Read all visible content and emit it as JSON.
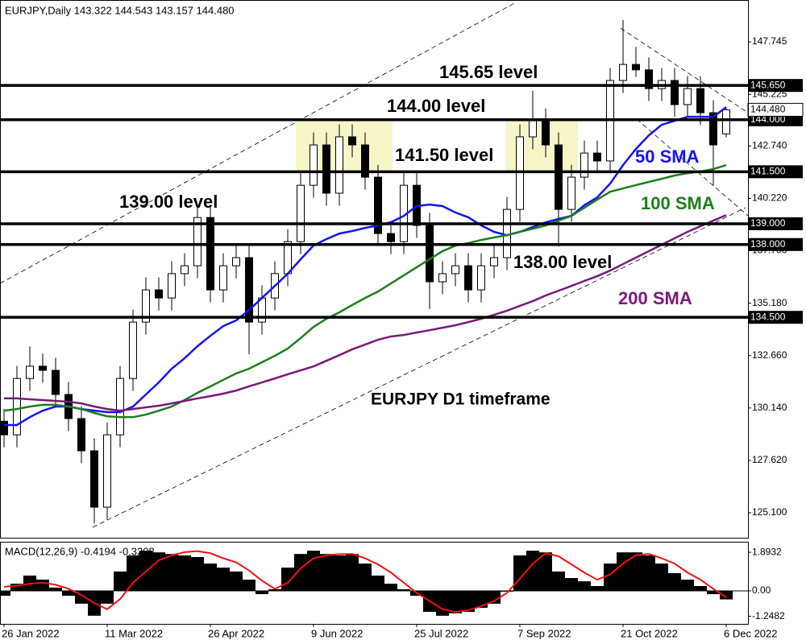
{
  "chart_data": [
    {
      "type": "candlestick",
      "title": "EURJPY,Daily  143.322 144.543 143.157 144.480",
      "subtitle": "EURJPY D1 timeframe",
      "categories": [
        "26 Jan 2022",
        null,
        null,
        null,
        null,
        null,
        null,
        null,
        "11 Mar 2022",
        null,
        null,
        null,
        null,
        null,
        null,
        null,
        "26 Apr 2022",
        null,
        null,
        null,
        null,
        null,
        null,
        null,
        "9 Jun 2022",
        null,
        null,
        null,
        null,
        null,
        null,
        null,
        "25 Jul 2022",
        null,
        null,
        null,
        null,
        null,
        null,
        null,
        "7 Sep 2022",
        null,
        null,
        null,
        null,
        null,
        null,
        null,
        "21 Oct 2022",
        null,
        null,
        null,
        null,
        null,
        null,
        null,
        "6 Dec 2022"
      ],
      "open": [
        129.5,
        128.85,
        131.56,
        132.15,
        131.95,
        130.79,
        129.63,
        128.08,
        125.37,
        128.85,
        131.56,
        134.27,
        135.82,
        135.43,
        136.6,
        136.98,
        139.3,
        135.82,
        136.98,
        137.37,
        134.27,
        135.43,
        136.6,
        138.14,
        140.85,
        142.79,
        140.47,
        143.18,
        142.79,
        141.24,
        138.53,
        138.14,
        140.85,
        138.92,
        136.21,
        136.6,
        136.98,
        135.82,
        136.98,
        137.37,
        139.69,
        143.18,
        143.95,
        142.79,
        139.69,
        141.24,
        142.4,
        142.02,
        145.89,
        146.66,
        146.4,
        145.5,
        145.89,
        144.73,
        145.5,
        144.34,
        143.322
      ],
      "high": [
        130.1,
        132.16,
        133.1,
        132.75,
        132.55,
        131.39,
        130.23,
        128.68,
        129.45,
        132.16,
        134.87,
        136.42,
        136.42,
        137.2,
        137.58,
        139.9,
        139.9,
        137.58,
        137.97,
        137.97,
        136.03,
        137.2,
        138.74,
        141.45,
        143.39,
        143.39,
        143.78,
        143.78,
        143.39,
        141.84,
        139.13,
        141.45,
        141.45,
        139.52,
        137.2,
        137.58,
        137.58,
        137.58,
        137.97,
        140.29,
        143.78,
        145.4,
        144.55,
        143.39,
        141.84,
        143.0,
        143.0,
        146.49,
        148.8,
        147.5,
        147.0,
        146.49,
        146.49,
        146.1,
        146.1,
        144.94,
        144.543
      ],
      "low": [
        128.25,
        128.25,
        130.96,
        131.35,
        130.19,
        129.03,
        127.48,
        124.6,
        124.77,
        128.25,
        130.96,
        133.67,
        134.83,
        134.83,
        136.0,
        136.38,
        135.22,
        135.22,
        136.38,
        132.72,
        133.67,
        134.83,
        136.0,
        137.54,
        140.25,
        139.87,
        139.87,
        142.19,
        140.64,
        137.93,
        137.54,
        137.54,
        138.32,
        134.9,
        135.61,
        136.0,
        135.22,
        135.22,
        136.38,
        136.77,
        139.09,
        142.58,
        142.19,
        137.9,
        139.09,
        140.64,
        141.42,
        141.42,
        145.29,
        146.06,
        144.9,
        144.9,
        144.13,
        144.13,
        143.74,
        140.85,
        143.157
      ],
      "close": [
        128.85,
        131.56,
        132.15,
        131.95,
        130.79,
        129.63,
        128.08,
        125.37,
        128.85,
        131.56,
        134.27,
        135.82,
        135.43,
        136.6,
        136.98,
        139.3,
        135.82,
        136.98,
        137.37,
        134.27,
        135.43,
        136.6,
        138.14,
        140.85,
        142.79,
        140.47,
        143.18,
        142.79,
        141.24,
        138.53,
        138.14,
        140.85,
        138.92,
        136.21,
        136.6,
        136.98,
        135.82,
        136.98,
        137.37,
        139.69,
        143.18,
        143.95,
        142.79,
        139.69,
        141.24,
        142.4,
        142.02,
        145.89,
        146.66,
        146.4,
        145.5,
        145.89,
        144.73,
        145.5,
        144.34,
        142.79,
        144.48
      ],
      "bull_color": "#ffffff",
      "bear_color": "#000000",
      "series": [
        {
          "name": "50 SMA",
          "color": "#1414f0",
          "values": [
            129.32,
            129.32,
            129.7,
            130.01,
            130.21,
            130.21,
            130.09,
            130.01,
            129.94,
            129.94,
            130.21,
            130.79,
            131.37,
            132.03,
            132.53,
            133.11,
            133.61,
            134.08,
            134.35,
            134.85,
            135.43,
            136.01,
            136.6,
            137.29,
            137.95,
            138.26,
            138.53,
            138.65,
            138.8,
            138.92,
            139.07,
            139.38,
            139.85,
            139.92,
            139.85,
            139.54,
            139.31,
            138.92,
            138.61,
            138.45,
            138.61,
            138.84,
            139.07,
            139.23,
            139.38,
            139.89,
            140.27,
            140.93,
            141.82,
            142.6,
            143.25,
            143.76,
            143.95,
            144.14,
            144.14,
            144.14,
            144.61
          ]
        },
        {
          "name": "100 SMA",
          "color": "#1e7d1e",
          "values": [
            130.01,
            130.09,
            130.21,
            130.29,
            130.29,
            130.21,
            130.09,
            129.9,
            129.74,
            129.7,
            129.7,
            129.82,
            130.01,
            130.21,
            130.52,
            130.87,
            131.18,
            131.49,
            131.8,
            132.03,
            132.34,
            132.65,
            133.0,
            133.5,
            134.04,
            134.43,
            134.74,
            135.09,
            135.43,
            135.74,
            136.13,
            136.52,
            136.91,
            137.29,
            137.68,
            137.95,
            138.07,
            138.22,
            138.34,
            138.45,
            138.61,
            138.76,
            138.92,
            139.15,
            139.38,
            139.77,
            140.16,
            140.54,
            140.7,
            140.86,
            141.01,
            141.16,
            141.32,
            141.43,
            141.51,
            141.63,
            141.82
          ]
        },
        {
          "name": "200 SMA",
          "color": "#7a1a7a",
          "values": [
            130.6,
            130.6,
            130.56,
            130.52,
            130.48,
            130.44,
            130.36,
            130.21,
            130.09,
            130.01,
            130.09,
            130.17,
            130.25,
            130.36,
            130.48,
            130.6,
            130.71,
            130.83,
            130.98,
            131.18,
            131.37,
            131.56,
            131.76,
            131.95,
            132.14,
            132.41,
            132.68,
            132.96,
            133.19,
            133.42,
            133.58,
            133.65,
            133.77,
            133.88,
            134.0,
            134.12,
            134.27,
            134.43,
            134.62,
            134.82,
            135.05,
            135.28,
            135.55,
            135.78,
            136.01,
            136.25,
            136.48,
            136.75,
            137.06,
            137.37,
            137.68,
            137.99,
            138.3,
            138.61,
            138.88,
            139.15,
            139.42
          ]
        }
      ],
      "levels": [
        {
          "value": 145.65,
          "label": "145.650",
          "text": "145.65 level"
        },
        {
          "value": 144.0,
          "label": "144.000",
          "text": "144.00 level"
        },
        {
          "value": 141.5,
          "label": "141.500",
          "text": "141.50 level"
        },
        {
          "value": 139.0,
          "label": "139.000",
          "text": "139.00 level"
        },
        {
          "value": 138.0,
          "label": "138.000",
          "text": "138.00 level"
        },
        {
          "value": 134.5,
          "label": "134.500"
        }
      ],
      "price_marker": {
        "value": 144.48,
        "label": "144.480"
      },
      "ylim": [
        123.9,
        149.76
      ],
      "yticks": [
        {
          "value": 125.1,
          "label": "125.100"
        },
        {
          "value": 127.62,
          "label": "127.620"
        },
        {
          "value": 130.14,
          "label": "130.140"
        },
        {
          "value": 132.66,
          "label": "132.660"
        },
        {
          "value": 135.18,
          "label": "135.180"
        },
        {
          "value": 137.7,
          "label": "137.700"
        },
        {
          "value": 140.22,
          "label": "140.220"
        },
        {
          "value": 142.74,
          "label": "142.740"
        },
        145.225,
        147.745
      ]
    },
    {
      "type": "macd",
      "title": "MACD(12,26,9) -0.4194 -0.3208",
      "values": [
        -0.24,
        0.35,
        0.75,
        0.55,
        0.16,
        -0.24,
        -0.63,
        -1.22,
        -0.63,
        0.95,
        1.74,
        1.97,
        1.89,
        1.81,
        1.74,
        1.66,
        1.34,
        1.14,
        0.95,
        0.55,
        -0.16,
        0.08,
        1.14,
        1.81,
        1.97,
        1.81,
        1.74,
        1.81,
        1.34,
        0.75,
        0.35,
        0.08,
        -0.24,
        -1.03,
        -1.22,
        -1.1,
        -1.03,
        -0.83,
        -0.63,
        -0.04,
        1.74,
        1.97,
        1.89,
        0.95,
        0.63,
        0.47,
        0.24,
        1.34,
        1.89,
        1.89,
        1.74,
        1.34,
        0.87,
        0.55,
        0.24,
        -0.16,
        -0.4194
      ],
      "color": "#000000",
      "series": [
        {
          "color": "#ee1111",
          "values": [
            0.2,
            0.25,
            0.35,
            0.4,
            0.3,
            0.1,
            -0.2,
            -0.6,
            -0.9,
            -0.4,
            0.4,
            0.95,
            1.5,
            1.74,
            1.9,
            1.95,
            1.85,
            1.6,
            1.4,
            1.0,
            0.5,
            0.1,
            0.4,
            1.1,
            1.6,
            1.74,
            1.8,
            1.81,
            1.6,
            1.3,
            0.9,
            0.4,
            -0.1,
            -0.5,
            -0.9,
            -1.03,
            -0.95,
            -0.75,
            -0.5,
            -0.1,
            0.6,
            1.34,
            1.85,
            1.7,
            1.3,
            0.9,
            0.55,
            0.8,
            1.34,
            1.75,
            1.81,
            1.6,
            1.34,
            0.9,
            0.55,
            0.1,
            -0.3208
          ]
        }
      ],
      "ylim": [
        -1.62,
        2.41
      ],
      "yticks": [
        1.8932,
        {
          "value": 0,
          "label": "0.00"
        },
        -1.2482
      ]
    }
  ]
}
